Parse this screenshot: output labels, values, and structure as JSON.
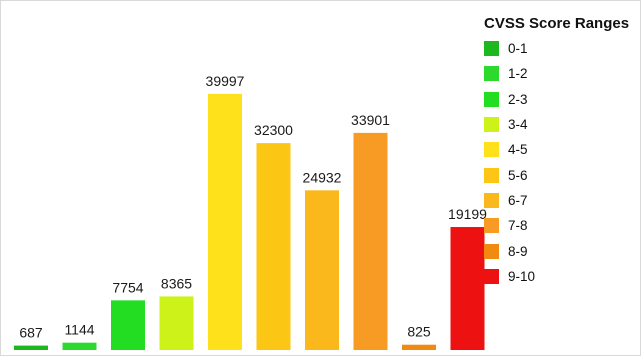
{
  "chart_data": {
    "type": "bar",
    "title": "",
    "xlabel": "",
    "ylabel": "",
    "ylim": [
      0,
      42000
    ],
    "grid": false,
    "legend_title": "CVSS Score Ranges",
    "legend_position": "right",
    "categories": [
      "0-1",
      "1-2",
      "2-3",
      "3-4",
      "4-5",
      "5-6",
      "6-7",
      "7-8",
      "8-9",
      "9-10"
    ],
    "values": [
      687,
      1144,
      7754,
      8365,
      39997,
      32300,
      24932,
      33901,
      825,
      19199
    ],
    "value_labels": [
      "687",
      "1144",
      "7754",
      "8365",
      "39997",
      "32300",
      "24932",
      "33901",
      "825",
      "19199"
    ],
    "colors": [
      "#1db81d",
      "#2ed92e",
      "#22dd22",
      "#ccf21a",
      "#fee01b",
      "#fbc614",
      "#fbb81c",
      "#f89b24",
      "#f08a10",
      "#ee1111"
    ]
  }
}
